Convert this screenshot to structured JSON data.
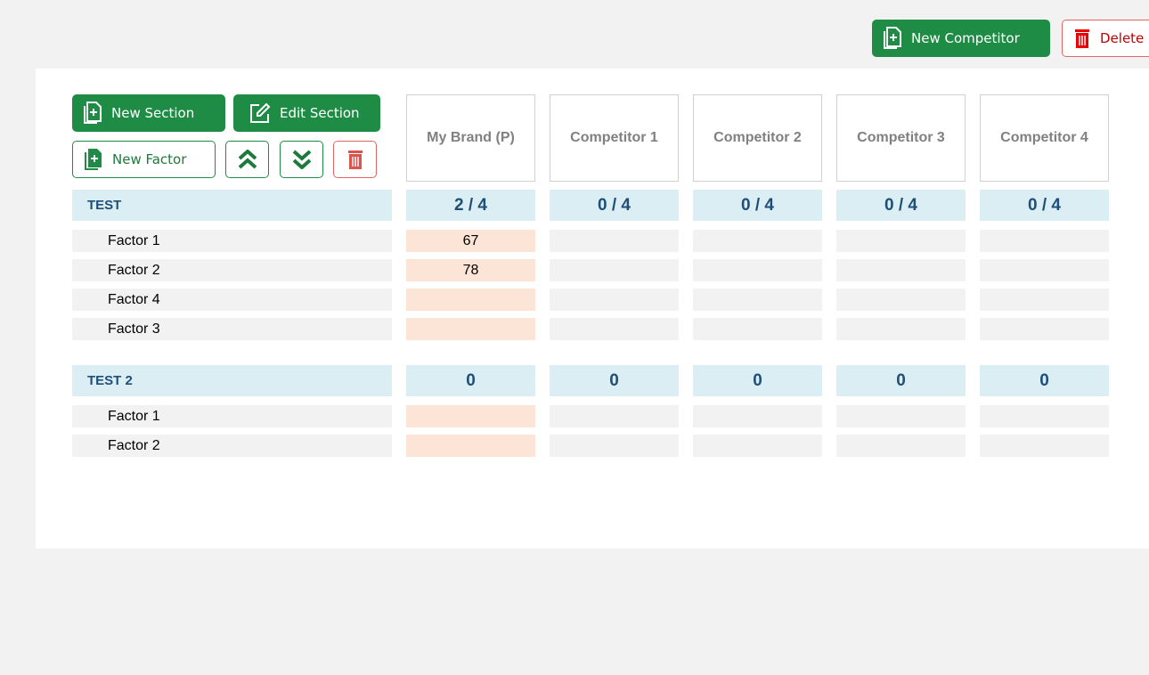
{
  "toolbar": {
    "new_competitor": "New Competitor",
    "delete": "Delete"
  },
  "panel_buttons": {
    "new_section": "New Section",
    "edit_section": "Edit Section",
    "new_factor": "New Factor"
  },
  "columns": [
    "My Brand (P)",
    "Competitor 1",
    "Competitor 2",
    "Competitor 3",
    "Competitor 4"
  ],
  "sections": [
    {
      "title": "TEST",
      "scores": [
        "2 / 4",
        "0 / 4",
        "0 / 4",
        "0 / 4",
        "0 / 4"
      ],
      "factors": [
        {
          "label": "Factor 1",
          "values": [
            67
          ]
        },
        {
          "label": "Factor 2",
          "values": [
            78
          ]
        },
        {
          "label": "Factor 4"
        },
        {
          "label": "Factor 3"
        }
      ]
    },
    {
      "title": "TEST 2",
      "scores": [
        0,
        0,
        0,
        0,
        0
      ],
      "factors": [
        {
          "label": "Factor 1"
        },
        {
          "label": "Factor 2"
        }
      ]
    }
  ]
}
